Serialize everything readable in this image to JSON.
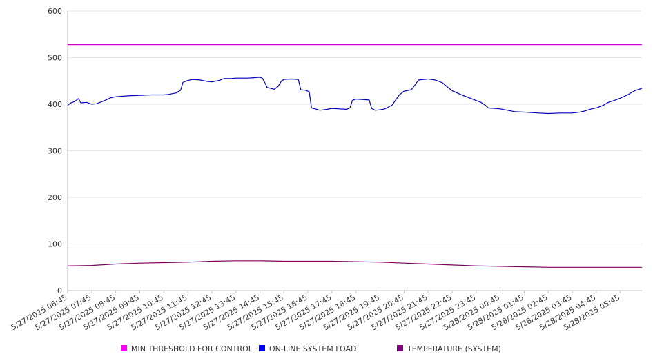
{
  "chart_data": {
    "type": "line",
    "title": "",
    "xlabel": "",
    "ylabel": "",
    "ylim": [
      0,
      600
    ],
    "y_ticks": [
      "0",
      "100",
      "200",
      "300",
      "400",
      "500",
      "600"
    ],
    "grid": "horizontal",
    "legend_position": "bottom",
    "x_tick_labels": [
      "5/27/2025 06:45",
      "5/27/2025 07:45",
      "5/27/2025 08:45",
      "5/27/2025 09:45",
      "5/27/2025 10:45",
      "5/27/2025 11:45",
      "5/27/2025 12:45",
      "5/27/2025 13:45",
      "5/27/2025 14:45",
      "5/27/2025 15:45",
      "5/27/2025 16:45",
      "5/27/2025 17:45",
      "5/27/2025 18:45",
      "5/27/2025 19:45",
      "5/27/2025 20:45",
      "5/27/2025 21:45",
      "5/27/2025 22:45",
      "5/27/2025 23:45",
      "5/28/2025 00:45",
      "5/28/2025 01:45",
      "5/28/2025 02:45",
      "5/28/2025 03:45",
      "5/28/2025 04:45",
      "5/28/2025 05:45"
    ],
    "x_hours": [
      0,
      23.9
    ],
    "series": [
      {
        "name": "MIN THRESHOLD FOR CONTROL",
        "color": "#cc00cc",
        "legend_color": "#ff00ff",
        "points": [
          [
            0,
            528
          ],
          [
            23.9,
            528
          ]
        ]
      },
      {
        "name": "ON-LINE SYSTEM LOAD",
        "color": "#0000bb",
        "legend_color": "#0000ff",
        "points": [
          [
            0,
            397
          ],
          [
            0.1,
            402
          ],
          [
            0.3,
            406
          ],
          [
            0.45,
            412
          ],
          [
            0.55,
            403
          ],
          [
            0.8,
            404
          ],
          [
            1.0,
            400
          ],
          [
            1.2,
            401
          ],
          [
            1.5,
            407
          ],
          [
            1.8,
            414
          ],
          [
            2.0,
            416
          ],
          [
            2.5,
            418
          ],
          [
            3.0,
            419
          ],
          [
            3.5,
            420
          ],
          [
            4.0,
            420
          ],
          [
            4.2,
            421
          ],
          [
            4.5,
            424
          ],
          [
            4.7,
            430
          ],
          [
            4.8,
            447
          ],
          [
            5.0,
            451
          ],
          [
            5.2,
            453
          ],
          [
            5.5,
            452
          ],
          [
            5.8,
            449
          ],
          [
            6.0,
            448
          ],
          [
            6.3,
            451
          ],
          [
            6.5,
            455
          ],
          [
            6.8,
            455
          ],
          [
            7.0,
            456
          ],
          [
            7.5,
            456
          ],
          [
            7.8,
            457
          ],
          [
            8.0,
            458
          ],
          [
            8.1,
            456
          ],
          [
            8.2,
            447
          ],
          [
            8.3,
            436
          ],
          [
            8.6,
            432
          ],
          [
            8.75,
            438
          ],
          [
            8.9,
            450
          ],
          [
            9.0,
            453
          ],
          [
            9.3,
            454
          ],
          [
            9.6,
            453
          ],
          [
            9.7,
            431
          ],
          [
            9.9,
            430
          ],
          [
            10.05,
            427
          ],
          [
            10.15,
            392
          ],
          [
            10.3,
            390
          ],
          [
            10.5,
            387
          ],
          [
            10.8,
            389
          ],
          [
            11.0,
            391
          ],
          [
            11.3,
            390
          ],
          [
            11.6,
            389
          ],
          [
            11.75,
            392
          ],
          [
            11.85,
            408
          ],
          [
            12.0,
            411
          ],
          [
            12.3,
            410
          ],
          [
            12.55,
            409
          ],
          [
            12.65,
            391
          ],
          [
            12.8,
            387
          ],
          [
            13.0,
            388
          ],
          [
            13.2,
            390
          ],
          [
            13.5,
            398
          ],
          [
            13.8,
            420
          ],
          [
            14.0,
            428
          ],
          [
            14.3,
            431
          ],
          [
            14.45,
            441
          ],
          [
            14.6,
            452
          ],
          [
            15.0,
            454
          ],
          [
            15.3,
            452
          ],
          [
            15.6,
            446
          ],
          [
            15.8,
            437
          ],
          [
            16.0,
            429
          ],
          [
            16.3,
            422
          ],
          [
            16.5,
            418
          ],
          [
            16.9,
            410
          ],
          [
            17.2,
            404
          ],
          [
            17.4,
            397
          ],
          [
            17.5,
            392
          ],
          [
            18.0,
            390
          ],
          [
            18.3,
            387
          ],
          [
            18.6,
            384
          ],
          [
            19.0,
            383
          ],
          [
            19.3,
            382
          ],
          [
            19.6,
            381
          ],
          [
            20.0,
            380
          ],
          [
            20.5,
            381
          ],
          [
            21.0,
            381
          ],
          [
            21.3,
            383
          ],
          [
            21.5,
            385
          ],
          [
            21.8,
            390
          ],
          [
            22.0,
            392
          ],
          [
            22.3,
            398
          ],
          [
            22.5,
            404
          ],
          [
            22.8,
            409
          ],
          [
            23.0,
            413
          ],
          [
            23.3,
            420
          ],
          [
            23.6,
            429
          ],
          [
            23.9,
            434
          ]
        ]
      },
      {
        "name": "TEMPERATURE (SYSTEM)",
        "color": "#800060",
        "legend_color": "#800080",
        "points": [
          [
            0,
            53
          ],
          [
            1.0,
            54
          ],
          [
            2.0,
            57
          ],
          [
            3.0,
            59
          ],
          [
            4.0,
            60
          ],
          [
            5.0,
            61
          ],
          [
            6.0,
            63
          ],
          [
            7.0,
            64
          ],
          [
            8.0,
            64
          ],
          [
            9.0,
            63
          ],
          [
            10.0,
            63
          ],
          [
            11.0,
            63
          ],
          [
            12.0,
            62
          ],
          [
            13.0,
            61
          ],
          [
            14.0,
            59
          ],
          [
            15.0,
            57
          ],
          [
            16.0,
            55
          ],
          [
            17.0,
            53
          ],
          [
            18.0,
            52
          ],
          [
            19.0,
            51
          ],
          [
            20.0,
            50
          ],
          [
            21.0,
            50
          ],
          [
            22.0,
            50
          ],
          [
            23.9,
            50
          ]
        ]
      }
    ]
  }
}
